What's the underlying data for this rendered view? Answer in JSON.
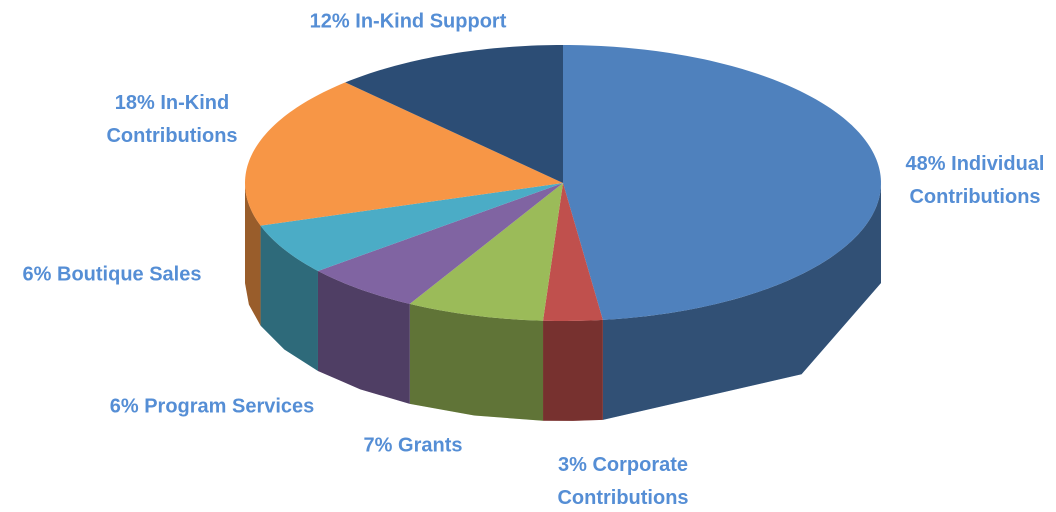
{
  "chart_data": {
    "type": "pie",
    "categories": [
      "Individual Contributions",
      "Corporate Contributions",
      "Grants",
      "Program Services",
      "Boutique Sales",
      "In-Kind Contributions",
      "In-Kind Support"
    ],
    "values": [
      48,
      3,
      7,
      6,
      6,
      18,
      12
    ],
    "value_labels": [
      "48%",
      "3%",
      "7%",
      "6%",
      "6%",
      "18%",
      "12%"
    ],
    "colors": [
      "#4f81bd",
      "#c0504d",
      "#9bbb59",
      "#8064a2",
      "#4bacc6",
      "#f79646",
      "#2c4d75"
    ]
  }
}
